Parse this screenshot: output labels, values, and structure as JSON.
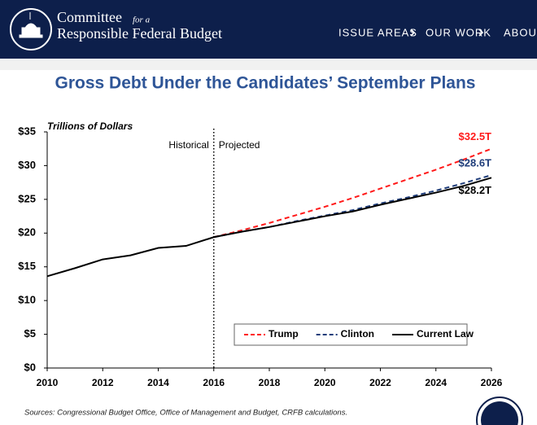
{
  "header": {
    "org_line1": "Committee",
    "org_for": "for a",
    "org_line2": "Responsible Federal Budget",
    "nav": [
      "ISSUE AREAS",
      "OUR WORK",
      "ABOUT"
    ]
  },
  "chart_data": {
    "type": "line",
    "title": "Gross Debt Under the Candidates’ September Plans",
    "y_label": "Trillions of Dollars",
    "annotations": [
      "Historical",
      "Projected"
    ],
    "x": [
      2010,
      2011,
      2012,
      2013,
      2014,
      2015,
      2016,
      2017,
      2018,
      2019,
      2020,
      2021,
      2022,
      2023,
      2024,
      2025,
      2026
    ],
    "series": [
      {
        "name": "Trump",
        "color": "#ff1a1a",
        "dashed": true,
        "values": [
          null,
          null,
          null,
          null,
          null,
          null,
          19.4,
          20.4,
          21.5,
          22.7,
          23.9,
          25.2,
          26.6,
          28.0,
          29.4,
          30.9,
          32.5
        ],
        "value_labels": [
          null,
          null,
          null,
          null,
          null,
          null,
          null,
          null,
          null,
          null,
          null,
          null,
          null,
          null,
          null,
          null,
          "$32.5T"
        ]
      },
      {
        "name": "Clinton",
        "color": "#1f3d7a",
        "dashed": true,
        "values": [
          null,
          null,
          null,
          null,
          null,
          null,
          19.4,
          20.2,
          20.9,
          21.8,
          22.6,
          23.4,
          24.4,
          25.3,
          26.3,
          27.4,
          28.6
        ],
        "value_labels": [
          null,
          null,
          null,
          null,
          null,
          null,
          null,
          null,
          null,
          null,
          null,
          null,
          null,
          null,
          null,
          null,
          "$28.6T"
        ]
      },
      {
        "name": "Current Law",
        "color": "#000000",
        "dashed": false,
        "values": [
          13.6,
          14.8,
          16.1,
          16.7,
          17.8,
          18.1,
          19.4,
          20.2,
          20.9,
          21.7,
          22.5,
          23.2,
          24.2,
          25.1,
          26.0,
          27.0,
          28.2
        ],
        "value_labels": [
          null,
          null,
          null,
          null,
          null,
          null,
          null,
          null,
          null,
          null,
          null,
          null,
          null,
          null,
          null,
          null,
          "$28.2T"
        ]
      }
    ],
    "xlim": [
      2010,
      2026
    ],
    "xticks": [
      2010,
      2012,
      2014,
      2016,
      2018,
      2020,
      2022,
      2024,
      2026
    ],
    "ylim": [
      0,
      35
    ],
    "yticks": [
      {
        "value": 0,
        "label": "$0"
      },
      {
        "value": 5,
        "label": "$5"
      },
      {
        "value": 10,
        "label": "$10"
      },
      {
        "value": 15,
        "label": "$15"
      },
      {
        "value": 20,
        "label": "$20"
      },
      {
        "value": 25,
        "label": "$25"
      },
      {
        "value": 30,
        "label": "$30"
      },
      {
        "value": 35,
        "label": "$35"
      }
    ],
    "grid": false,
    "legend": "bottom-right",
    "source": "Sources: Congressional Budget Office, Office of Management and Budget, CRFB calculations."
  }
}
